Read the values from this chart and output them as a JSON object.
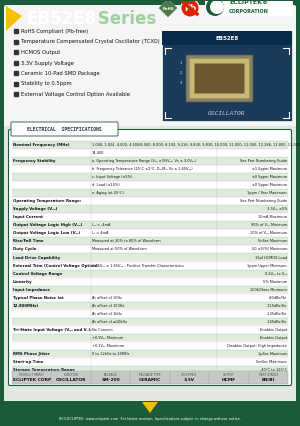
{
  "dark_green": "#1a5c3a",
  "light_green": "#e8f4e8",
  "medium_green": "#2d7a2d",
  "yellow": "#f5c000",
  "header_white_bg": "#f0f0f0",
  "title_main": "EB52E8",
  "title_sub": " Series",
  "bullet_points": [
    "RoHS Compliant (Pb-free)",
    "Temperature Compensated Crystal Oscillator (TCXO)",
    "HCMOS Output",
    "3.3V Supply Voltage",
    "Ceramic 10-Pad SMD Package",
    "Stability to 0.5ppm",
    "External Voltage Control Option Available"
  ],
  "section_title": "ELECTRICAL  SPECIFICATIONS",
  "footer_text": "800-ECLIPTEK  www.ecliptek.com  For latest revision  Specifications subject to change without notice.",
  "footer_cols_top": [
    "PRODUCT FAMILY",
    "FUNCTION",
    "PACKAGE",
    "PACKAGE TYPE",
    "VOLT/FREQ",
    "OUTPUT",
    "PART STATUS"
  ],
  "footer_cols_bot": [
    "ECLIPTEK CORP",
    "OSCILLATOR",
    "SM-200",
    "CERAMIC",
    "3.3V",
    "HCMF",
    "EN/BI"
  ],
  "oscillator_label": "OSCILLATOR"
}
